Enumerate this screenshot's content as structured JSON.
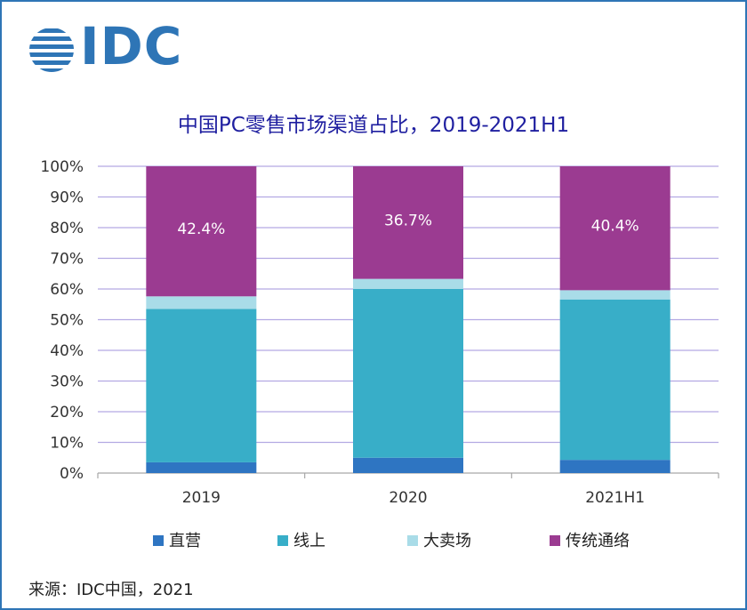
{
  "logo": {
    "text": "IDC",
    "color": "#2e75b6"
  },
  "source": "来源：IDC中国，2021",
  "chart_data": {
    "type": "bar",
    "stacked": true,
    "title": "中国PC零售市场渠道占比，2019-2021H1",
    "categories": [
      "2019",
      "2020",
      "2021H1"
    ],
    "yticks": [
      "0%",
      "10%",
      "20%",
      "30%",
      "40%",
      "50%",
      "60%",
      "70%",
      "80%",
      "90%",
      "100%"
    ],
    "ylim": [
      0,
      100
    ],
    "grid": true,
    "legend_position": "bottom",
    "series": [
      {
        "name": "直营",
        "color": "#2e75c2",
        "values": [
          3.5,
          5.0,
          4.3
        ]
      },
      {
        "name": "线上",
        "color": "#38aec8",
        "values": [
          50.0,
          55.0,
          52.3
        ]
      },
      {
        "name": "大卖场",
        "color": "#a9dce8",
        "values": [
          4.1,
          3.3,
          3.0
        ]
      },
      {
        "name": "传统通络",
        "color": "#9b3b91",
        "values": [
          42.4,
          36.7,
          40.4
        ],
        "labels": [
          "42.4%",
          "36.7%",
          "40.4%"
        ]
      }
    ]
  }
}
